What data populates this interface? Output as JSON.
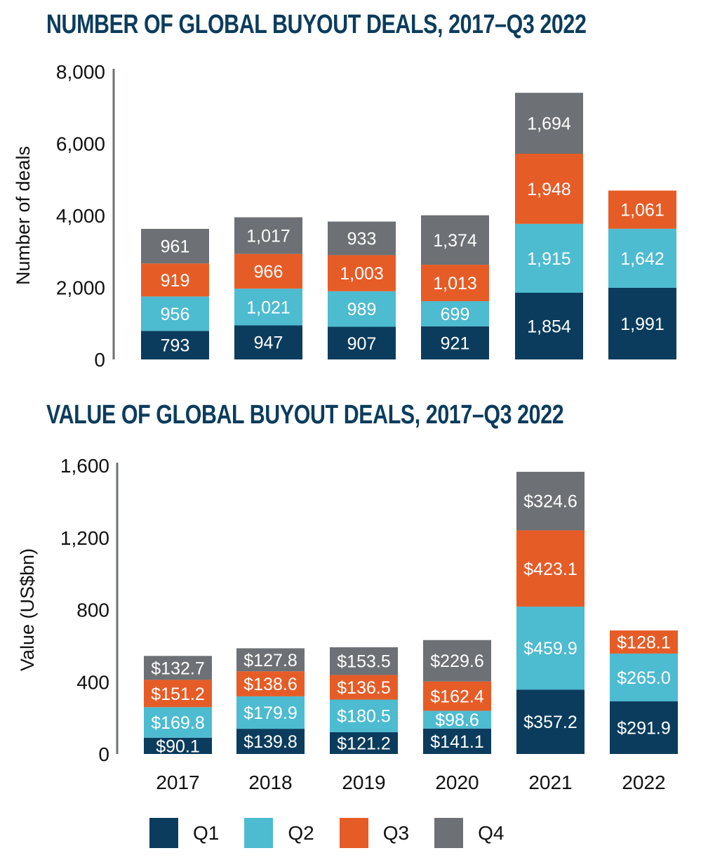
{
  "colors": {
    "title": "#0b3c5d",
    "Q1": "#0b3c5d",
    "Q2": "#4dbbd0",
    "Q3": "#e65c27",
    "Q4": "#6d7074",
    "axis": "#6d7074",
    "bar_label": "#ffffff",
    "tick_label": "#111111"
  },
  "legend": [
    {
      "key": "Q1",
      "label": "Q1"
    },
    {
      "key": "Q2",
      "label": "Q2"
    },
    {
      "key": "Q3",
      "label": "Q3"
    },
    {
      "key": "Q4",
      "label": "Q4"
    }
  ],
  "chart_data": [
    {
      "type": "bar",
      "stacked": true,
      "title": "NUMBER OF GLOBAL BUYOUT DEALS, 2017–Q3 2022",
      "xlabel": "",
      "ylabel": "Number of deals",
      "ylim": [
        0,
        8000
      ],
      "yticks": [
        0,
        2000,
        4000,
        6000,
        8000
      ],
      "ytick_labels": [
        "0",
        "2,000",
        "4,000",
        "6,000",
        "8,000"
      ],
      "categories": [
        "2017",
        "2018",
        "2019",
        "2020",
        "2021",
        "2022"
      ],
      "show_category_labels": false,
      "grid": false,
      "series": [
        {
          "name": "Q1",
          "values": [
            793,
            947,
            907,
            921,
            1854,
            1991
          ],
          "labels": [
            "793",
            "947",
            "907",
            "921",
            "1,854",
            "1,991"
          ]
        },
        {
          "name": "Q2",
          "values": [
            956,
            1021,
            989,
            699,
            1915,
            1642
          ],
          "labels": [
            "956",
            "1,021",
            "989",
            "699",
            "1,915",
            "1,642"
          ]
        },
        {
          "name": "Q3",
          "values": [
            919,
            966,
            1003,
            1013,
            1948,
            1061
          ],
          "labels": [
            "919",
            "966",
            "1,003",
            "1,013",
            "1,948",
            "1,061"
          ]
        },
        {
          "name": "Q4",
          "values": [
            961,
            1017,
            933,
            1374,
            1694,
            null
          ],
          "labels": [
            "961",
            "1,017",
            "933",
            "1,374",
            "1,694",
            null
          ]
        }
      ]
    },
    {
      "type": "bar",
      "stacked": true,
      "title": "VALUE OF GLOBAL BUYOUT DEALS, 2017–Q3 2022",
      "xlabel": "",
      "ylabel": "Value (US$bn)",
      "ylim": [
        0,
        1600
      ],
      "yticks": [
        0,
        400,
        800,
        1200,
        1600
      ],
      "ytick_labels": [
        "0",
        "400",
        "800",
        "1,200",
        "1,600"
      ],
      "categories": [
        "2017",
        "2018",
        "2019",
        "2020",
        "2021",
        "2022"
      ],
      "show_category_labels": true,
      "grid": false,
      "legend_position": "bottom",
      "series": [
        {
          "name": "Q1",
          "values": [
            90.1,
            139.8,
            121.2,
            141.1,
            357.2,
            291.9
          ],
          "labels": [
            "$90.1",
            "$139.8",
            "$121.2",
            "$141.1",
            "$357.2",
            "$291.9"
          ]
        },
        {
          "name": "Q2",
          "values": [
            169.8,
            179.9,
            180.5,
            98.6,
            459.9,
            265.0
          ],
          "labels": [
            "$169.8",
            "$179.9",
            "$180.5",
            "$98.6",
            "$459.9",
            "$265.0"
          ]
        },
        {
          "name": "Q3",
          "values": [
            151.2,
            138.6,
            136.5,
            162.4,
            423.1,
            128.1
          ],
          "labels": [
            "$151.2",
            "$138.6",
            "$136.5",
            "$162.4",
            "$423.1",
            "$128.1"
          ]
        },
        {
          "name": "Q4",
          "values": [
            132.7,
            127.8,
            153.5,
            229.6,
            324.6,
            null
          ],
          "labels": [
            "$132.7",
            "$127.8",
            "$153.5",
            "$229.6",
            "$324.6",
            null
          ]
        }
      ]
    }
  ]
}
